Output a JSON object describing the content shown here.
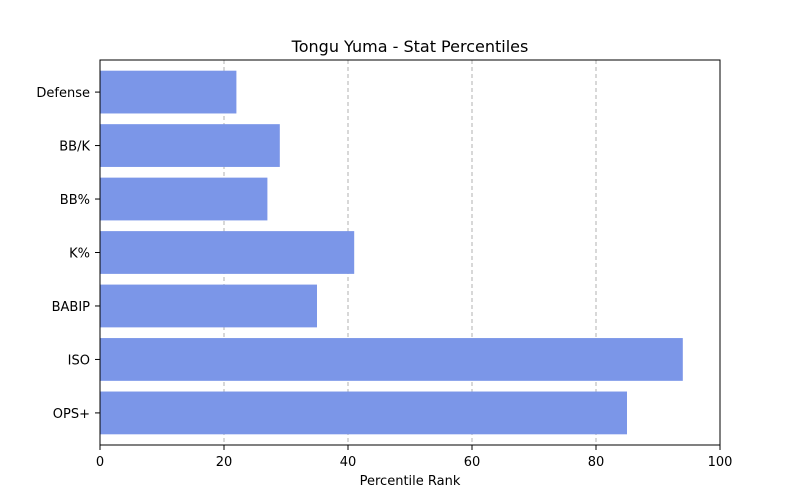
{
  "chart_data": {
    "type": "bar",
    "orientation": "horizontal",
    "title": "Tongu Yuma - Stat Percentiles",
    "xlabel": "Percentile Rank",
    "ylabel": "",
    "xlim": [
      0,
      100
    ],
    "xticks": [
      0,
      20,
      40,
      60,
      80,
      100
    ],
    "grid": "x-dashed",
    "categories": [
      "OPS+",
      "ISO",
      "BABIP",
      "K%",
      "BB%",
      "BB/K",
      "Defense"
    ],
    "values": [
      85,
      94,
      35,
      41,
      27,
      29,
      22
    ],
    "bar_color": "#7b96e8"
  }
}
